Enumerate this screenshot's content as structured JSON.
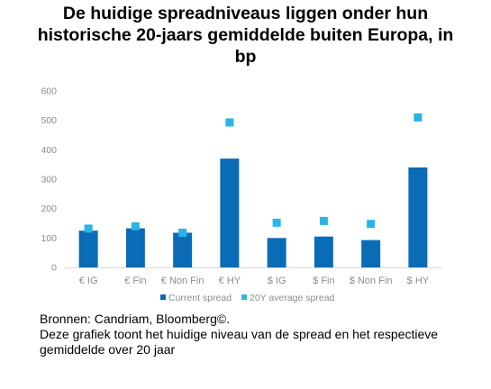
{
  "title_lines": [
    "De huidige spreadniveaus liggen onder hun",
    "historische 20-jaars gemiddelde buiten Europa, in",
    "bp"
  ],
  "chart_data": {
    "type": "bar",
    "categories": [
      "€ IG",
      "€ Fin",
      "€ Non Fin",
      "€ HY",
      "$ IG",
      "$ Fin",
      "$ Non Fin",
      "$ HY"
    ],
    "series": [
      {
        "name": "Current spread",
        "type": "bar",
        "color": "#0a6cb6",
        "values": [
          125,
          133,
          118,
          370,
          100,
          105,
          93,
          340
        ]
      },
      {
        "name": "20Y average spread",
        "type": "marker",
        "color": "#29b5e8",
        "values": [
          132,
          140,
          118,
          493,
          152,
          158,
          148,
          510
        ]
      }
    ],
    "yticks": [
      0,
      100,
      200,
      300,
      400,
      500,
      600
    ],
    "ylim": [
      0,
      600
    ],
    "legend_position": "bottom"
  },
  "source": {
    "line1": "Bronnen: Candriam, Bloomberg©.",
    "line2": "Deze grafiek toont het huidige niveau van de spread en het respectieve gemiddelde over 20 jaar"
  }
}
